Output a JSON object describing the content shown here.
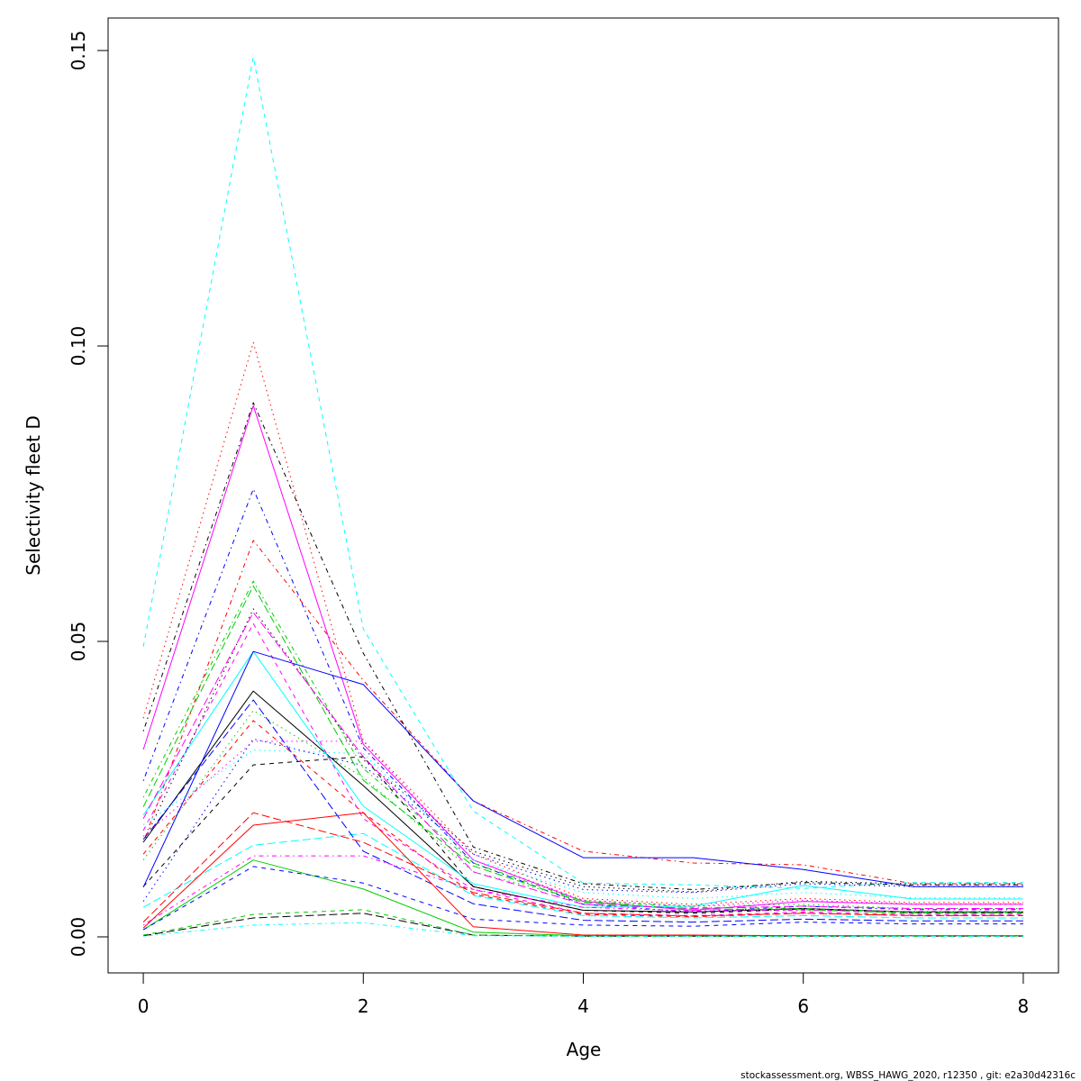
{
  "chart_data": {
    "type": "line",
    "xlabel": "Age",
    "ylabel": "Selectivity fleet D",
    "xlim": [
      -0.32,
      8.32
    ],
    "ylim": [
      -0.0061,
      0.1555
    ],
    "grid": false,
    "legend": "none",
    "x": [
      0,
      1,
      2,
      3,
      4,
      5,
      6,
      7,
      8
    ],
    "x_ticks": {
      "values": [
        0,
        2,
        4,
        6,
        8
      ],
      "labels": [
        "0",
        "2",
        "4",
        "6",
        "8"
      ]
    },
    "y_ticks": {
      "values": [
        0,
        0.05,
        0.1,
        0.15
      ],
      "labels": [
        "0.00",
        "0.05",
        "0.10",
        "0.15"
      ]
    },
    "series": [
      {
        "color": "#000000",
        "lty": "solid",
        "values": [
          0.016,
          0.0416,
          0.0256,
          0.0085,
          0.0045,
          0.0042,
          0.0048,
          0.0042,
          0.0042
        ]
      },
      {
        "color": "#FF0000",
        "lty": "dashed",
        "values": [
          0.014,
          0.0366,
          0.021,
          0.0072,
          0.0038,
          0.0034,
          0.004,
          0.0036,
          0.0036
        ]
      },
      {
        "color": "#00CD00",
        "lty": "dotted",
        "values": [
          0.013,
          0.0383,
          0.027,
          0.011,
          0.0062,
          0.0052,
          0.0055,
          0.0048,
          0.0048
        ]
      },
      {
        "color": "#0000FF",
        "lty": "dotdash",
        "values": [
          0.0264,
          0.0758,
          0.032,
          0.0125,
          0.0055,
          0.0042,
          0.0052,
          0.0046,
          0.0046
        ]
      },
      {
        "color": "#00FFFF",
        "lty": "longdash",
        "values": [
          0.005,
          0.0155,
          0.0175,
          0.007,
          0.0036,
          0.0032,
          0.0036,
          0.0032,
          0.0032
        ]
      },
      {
        "color": "#FF00FF",
        "lty": "solid",
        "values": [
          0.0317,
          0.0899,
          0.0326,
          0.013,
          0.006,
          0.0045,
          0.006,
          0.0055,
          0.0055
        ]
      },
      {
        "color": "#000000",
        "lty": "dashed",
        "values": [
          0.0085,
          0.0291,
          0.0305,
          0.0085,
          0.0045,
          0.004,
          0.0047,
          0.0041,
          0.0041
        ]
      },
      {
        "color": "#FF0000",
        "lty": "dotted",
        "values": [
          0.037,
          0.1006,
          0.0332,
          0.014,
          0.0065,
          0.0055,
          0.0065,
          0.0058,
          0.0058
        ]
      },
      {
        "color": "#00CD00",
        "lty": "dotdash",
        "values": [
          0.0236,
          0.0602,
          0.0285,
          0.0125,
          0.006,
          0.005,
          0.0048,
          0.0042,
          0.0042
        ]
      },
      {
        "color": "#0000FF",
        "lty": "longdash",
        "values": [
          0.0165,
          0.0401,
          0.0145,
          0.0056,
          0.0028,
          0.0025,
          0.003,
          0.0027,
          0.0027
        ]
      },
      {
        "color": "#00FFFF",
        "lty": "solid",
        "values": [
          0.0206,
          0.0483,
          0.0221,
          0.009,
          0.005,
          0.0052,
          0.0087,
          0.0064,
          0.0064
        ]
      },
      {
        "color": "#FF00FF",
        "lty": "dashed",
        "values": [
          0.018,
          0.053,
          0.02,
          0.008,
          0.004,
          0.0036,
          0.0042,
          0.0038,
          0.0038
        ]
      },
      {
        "color": "#000000",
        "lty": "dotted",
        "values": [
          0.016,
          0.0555,
          0.03,
          0.0145,
          0.0085,
          0.0076,
          0.0094,
          0.009,
          0.009
        ]
      },
      {
        "color": "#FF0000",
        "lty": "dotdash",
        "values": [
          0.016,
          0.0671,
          0.0434,
          0.023,
          0.0145,
          0.0125,
          0.0122,
          0.009,
          0.009
        ]
      },
      {
        "color": "#00CD00",
        "lty": "longdash",
        "values": [
          0.022,
          0.0594,
          0.0265,
          0.012,
          0.0058,
          0.0047,
          0.0046,
          0.004,
          0.004
        ]
      },
      {
        "color": "#0000FF",
        "lty": "solid",
        "values": [
          0.0084,
          0.0483,
          0.0427,
          0.023,
          0.0134,
          0.0134,
          0.0114,
          0.0085,
          0.0085
        ]
      },
      {
        "color": "#00FFFF",
        "lty": "dashed",
        "values": [
          0.0491,
          0.1489,
          0.0521,
          0.0213,
          0.0091,
          0.0088,
          0.0082,
          0.0092,
          0.0092
        ]
      },
      {
        "color": "#FF00FF",
        "lty": "dotted",
        "values": [
          0.017,
          0.0331,
          0.0331,
          0.013,
          0.0062,
          0.0052,
          0.0062,
          0.0056,
          0.0056
        ]
      },
      {
        "color": "#000000",
        "lty": "dotdash",
        "values": [
          0.0348,
          0.0904,
          0.048,
          0.0152,
          0.009,
          0.008,
          0.0092,
          0.0088,
          0.0088
        ]
      },
      {
        "color": "#FF0000",
        "lty": "longdash",
        "values": [
          0.0025,
          0.021,
          0.016,
          0.0075,
          0.004,
          0.0035,
          0.004,
          0.0036,
          0.0036
        ]
      },
      {
        "color": "#00CD00",
        "lty": "solid",
        "values": [
          0.0012,
          0.013,
          0.0081,
          0.0008,
          0.0002,
          0.0002,
          0.0002,
          0.0002,
          0.0002
        ]
      },
      {
        "color": "#0000FF",
        "lty": "dashed",
        "values": [
          0.0012,
          0.0119,
          0.0091,
          0.003,
          0.002,
          0.0018,
          0.0025,
          0.0022,
          0.0022
        ]
      },
      {
        "color": "#00FFFF",
        "lty": "dotted",
        "values": [
          0.019,
          0.0316,
          0.031,
          0.013,
          0.0075,
          0.0065,
          0.0075,
          0.0066,
          0.0066
        ]
      },
      {
        "color": "#FF00FF",
        "lty": "dotdash",
        "values": [
          0.002,
          0.0137,
          0.0137,
          0.008,
          0.005,
          0.0044,
          0.0045,
          0.0043,
          0.0043
        ]
      },
      {
        "color": "#000000",
        "lty": "longdash",
        "values": [
          0.0002,
          0.0032,
          0.004,
          0.0003,
          0.0001,
          0.0001,
          0.0001,
          0.0001,
          0.0001
        ]
      },
      {
        "color": "#FF0000",
        "lty": "solid",
        "values": [
          0.0015,
          0.0189,
          0.021,
          0.0017,
          0.0003,
          0.0003,
          0.0002,
          0.0002,
          0.0002
        ]
      },
      {
        "color": "#00CD00",
        "lty": "dashed",
        "values": [
          0.0003,
          0.0038,
          0.0046,
          0.0003,
          0.0001,
          0.0001,
          0.0001,
          0.0001,
          0.0001
        ]
      },
      {
        "color": "#0000FF",
        "lty": "dotted",
        "values": [
          0.006,
          0.0335,
          0.029,
          0.014,
          0.008,
          0.0075,
          0.009,
          0.0085,
          0.0085
        ]
      },
      {
        "color": "#00FFFF",
        "lty": "dotdash",
        "values": [
          0.0001,
          0.002,
          0.0024,
          0.0002,
          0.0001,
          0.0001,
          0.0001,
          0.0001,
          0.0001
        ]
      },
      {
        "color": "#FF00FF",
        "lty": "longdash",
        "values": [
          0.02,
          0.0549,
          0.0305,
          0.011,
          0.0055,
          0.0048,
          0.0052,
          0.0048,
          0.0048
        ]
      }
    ]
  },
  "footer": "stockassessment.org, WBSS_HAWG_2020, r12350 , git: e2a30d42316c"
}
